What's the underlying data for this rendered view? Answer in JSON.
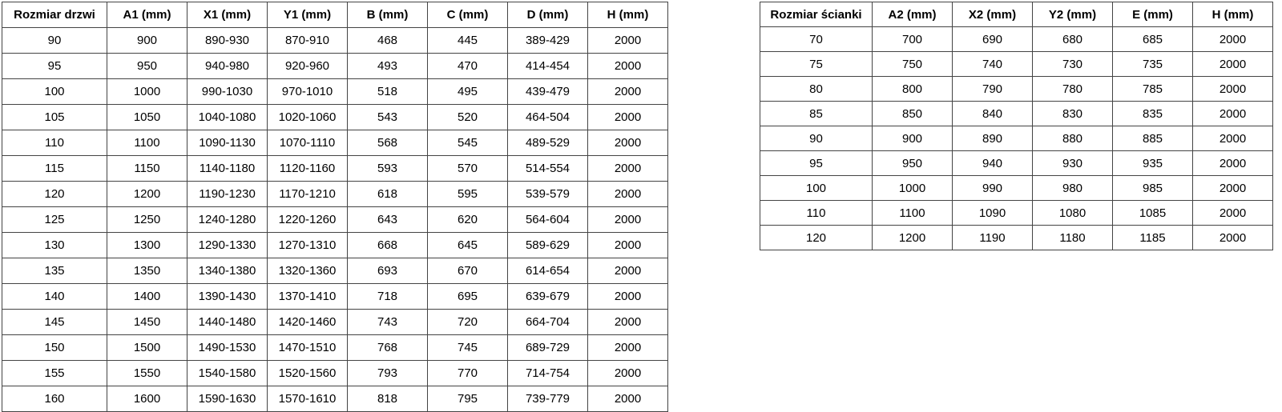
{
  "tables": [
    {
      "id": "door-sizes",
      "headers": [
        "Rozmiar drzwi",
        "A1 (mm)",
        "X1 (mm)",
        "Y1 (mm)",
        "B (mm)",
        "C (mm)",
        "D (mm)",
        "H (mm)"
      ],
      "rows": [
        [
          "90",
          "900",
          "890-930",
          "870-910",
          "468",
          "445",
          "389-429",
          "2000"
        ],
        [
          "95",
          "950",
          "940-980",
          "920-960",
          "493",
          "470",
          "414-454",
          "2000"
        ],
        [
          "100",
          "1000",
          "990-1030",
          "970-1010",
          "518",
          "495",
          "439-479",
          "2000"
        ],
        [
          "105",
          "1050",
          "1040-1080",
          "1020-1060",
          "543",
          "520",
          "464-504",
          "2000"
        ],
        [
          "110",
          "1100",
          "1090-1130",
          "1070-1110",
          "568",
          "545",
          "489-529",
          "2000"
        ],
        [
          "115",
          "1150",
          "1140-1180",
          "1120-1160",
          "593",
          "570",
          "514-554",
          "2000"
        ],
        [
          "120",
          "1200",
          "1190-1230",
          "1170-1210",
          "618",
          "595",
          "539-579",
          "2000"
        ],
        [
          "125",
          "1250",
          "1240-1280",
          "1220-1260",
          "643",
          "620",
          "564-604",
          "2000"
        ],
        [
          "130",
          "1300",
          "1290-1330",
          "1270-1310",
          "668",
          "645",
          "589-629",
          "2000"
        ],
        [
          "135",
          "1350",
          "1340-1380",
          "1320-1360",
          "693",
          "670",
          "614-654",
          "2000"
        ],
        [
          "140",
          "1400",
          "1390-1430",
          "1370-1410",
          "718",
          "695",
          "639-679",
          "2000"
        ],
        [
          "145",
          "1450",
          "1440-1480",
          "1420-1460",
          "743",
          "720",
          "664-704",
          "2000"
        ],
        [
          "150",
          "1500",
          "1490-1530",
          "1470-1510",
          "768",
          "745",
          "689-729",
          "2000"
        ],
        [
          "155",
          "1550",
          "1540-1580",
          "1520-1560",
          "793",
          "770",
          "714-754",
          "2000"
        ],
        [
          "160",
          "1600",
          "1590-1630",
          "1570-1610",
          "818",
          "795",
          "739-779",
          "2000"
        ]
      ]
    },
    {
      "id": "wall-sizes",
      "headers": [
        "Rozmiar ścianki",
        "A2 (mm)",
        "X2 (mm)",
        "Y2 (mm)",
        "E (mm)",
        "H (mm)"
      ],
      "rows": [
        [
          "70",
          "700",
          "690",
          "680",
          "685",
          "2000"
        ],
        [
          "75",
          "750",
          "740",
          "730",
          "735",
          "2000"
        ],
        [
          "80",
          "800",
          "790",
          "780",
          "785",
          "2000"
        ],
        [
          "85",
          "850",
          "840",
          "830",
          "835",
          "2000"
        ],
        [
          "90",
          "900",
          "890",
          "880",
          "885",
          "2000"
        ],
        [
          "95",
          "950",
          "940",
          "930",
          "935",
          "2000"
        ],
        [
          "100",
          "1000",
          "990",
          "980",
          "985",
          "2000"
        ],
        [
          "110",
          "1100",
          "1090",
          "1080",
          "1085",
          "2000"
        ],
        [
          "120",
          "1200",
          "1190",
          "1180",
          "1185",
          "2000"
        ]
      ]
    }
  ],
  "colors": {
    "background": "#ffffff",
    "border": "#444444",
    "text": "#000000"
  }
}
